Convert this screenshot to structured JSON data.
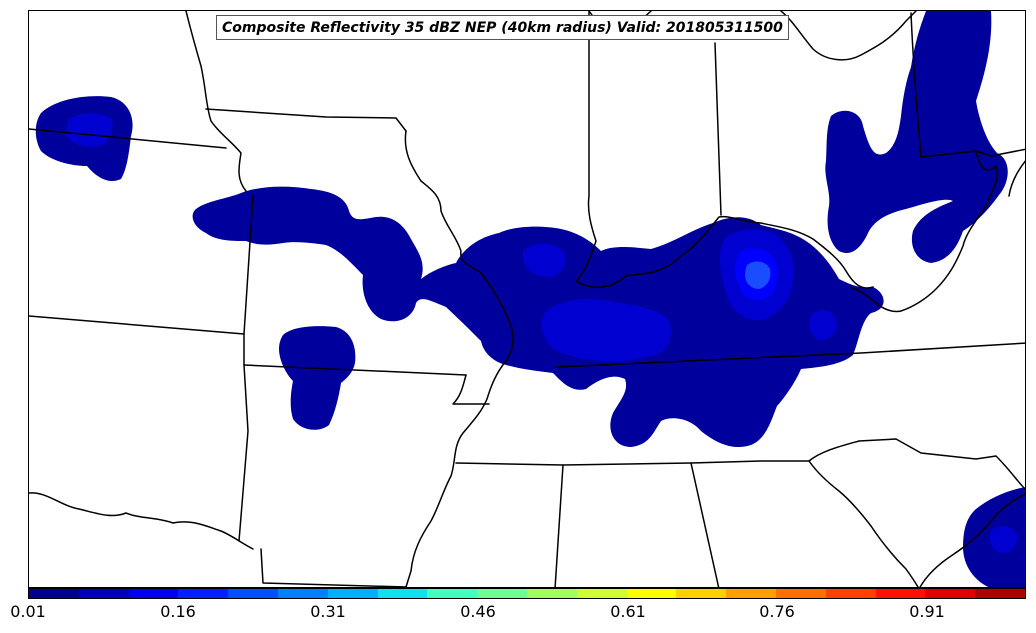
{
  "title": "Composite Reflectivity 35 dBZ NEP (40km radius) Valid: 201805311500",
  "colorbar": {
    "tick_labels": [
      "0.01",
      "0.16",
      "0.31",
      "0.46",
      "0.61",
      "0.76",
      "0.91"
    ],
    "colors": [
      "#00008f",
      "#0000bf",
      "#0000ef",
      "#0020ff",
      "#0050ff",
      "#0080ff",
      "#00b0ff",
      "#10e0ef",
      "#40ffbf",
      "#70ff8f",
      "#a0ff60",
      "#d0ff30",
      "#ffff00",
      "#ffd000",
      "#ffa000",
      "#ff7000",
      "#ff4000",
      "#ff1000",
      "#df0000",
      "#af0000"
    ]
  },
  "colors": {
    "low_prob_fill": "#00009c",
    "mid_prob_fill": "#0000d0",
    "high_prob_fill": "#0000ff",
    "peak_prob_fill": "#1a4dff",
    "boundary_stroke": "#000000"
  }
}
